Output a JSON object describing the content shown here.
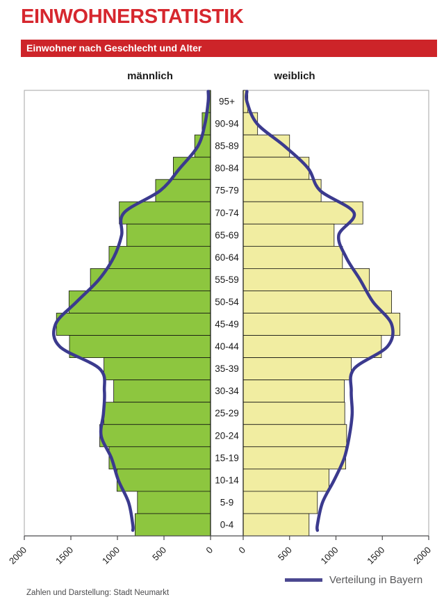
{
  "page": {
    "title": "EINWOHNERSTATISTIK",
    "banner": "Einwohner nach Geschlecht und Alter",
    "footer": "Zahlen und Darstellung: Stadt Neumarkt"
  },
  "chart_data": {
    "type": "bar",
    "subtype": "population-pyramid",
    "title": "Einwohner nach Geschlecht und Alter",
    "male_header": "männlich",
    "female_header": "weiblich",
    "legend": "Verteilung in Bayern",
    "age_groups": [
      "95+",
      "90-94",
      "85-89",
      "80-84",
      "75-79",
      "70-74",
      "65-69",
      "60-64",
      "55-59",
      "50-54",
      "45-49",
      "40-44",
      "35-39",
      "30-34",
      "25-29",
      "20-24",
      "15-19",
      "10-14",
      "5-9",
      "0-4"
    ],
    "series": [
      {
        "name": "männlich",
        "role": "bars-left",
        "color": "#8dc63f",
        "values": [
          25,
          90,
          170,
          400,
          590,
          980,
          900,
          1090,
          1290,
          1520,
          1655,
          1515,
          1145,
          1040,
          1145,
          1190,
          1090,
          1005,
          785,
          810
        ]
      },
      {
        "name": "weiblich",
        "role": "bars-right",
        "color": "#f1eda1",
        "values": [
          50,
          155,
          500,
          710,
          840,
          1290,
          980,
          1070,
          1360,
          1600,
          1690,
          1490,
          1165,
          1090,
          1095,
          1115,
          1105,
          925,
          800,
          710
        ]
      },
      {
        "name": "Verteilung in Bayern (männlich)",
        "role": "line-left",
        "color": "#3b3a8e",
        "values": [
          25,
          60,
          135,
          330,
          540,
          930,
          955,
          1040,
          1200,
          1440,
          1665,
          1620,
          1190,
          1140,
          1150,
          1175,
          1065,
          990,
          880,
          835
        ]
      },
      {
        "name": "Verteilung in Bayern (weiblich)",
        "role": "line-right",
        "color": "#3b3a8e",
        "values": [
          40,
          150,
          445,
          700,
          830,
          1195,
          1030,
          1110,
          1260,
          1400,
          1600,
          1555,
          1195,
          1165,
          1175,
          1145,
          1090,
          980,
          855,
          800
        ]
      }
    ],
    "x_ticks": [
      0,
      500,
      1000,
      1500,
      2000
    ],
    "x_tick_labels": [
      "0",
      "500",
      "1000",
      "1500",
      "2000"
    ],
    "xlim": [
      0,
      2000
    ],
    "colors": {
      "male_bar": "#8dc63f",
      "female_bar": "#f1eda1",
      "bar_outline": "#111111",
      "bayern_line": "#3b3a8e",
      "plot_border": "#a6a6a6",
      "axis": "#4a4a4c",
      "label_text": "#1a1a1a"
    }
  }
}
